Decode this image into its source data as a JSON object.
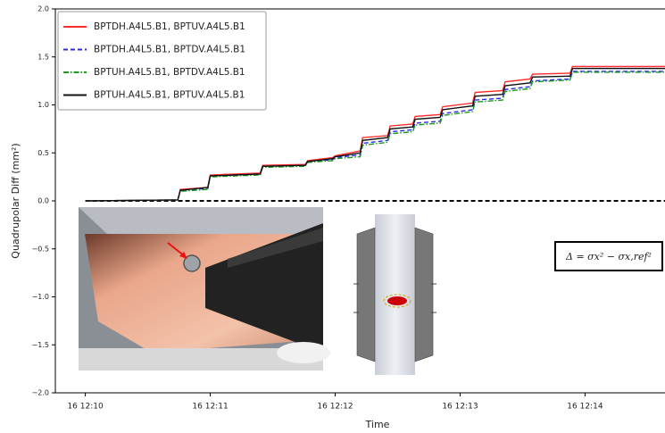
{
  "chart_data": {
    "type": "line",
    "xlabel": "Time",
    "ylabel": "Quadrupolar Diff (mm²)",
    "annotation": "Δ = σx² − σx,ref²",
    "x": [
      10.0,
      10.74,
      10.76,
      10.98,
      11.0,
      11.4,
      11.42,
      11.76,
      11.78,
      11.98,
      12.0,
      12.2,
      12.22,
      12.42,
      12.44,
      12.62,
      12.64,
      12.84,
      12.86,
      13.1,
      13.12,
      13.34,
      13.36,
      13.56,
      13.58,
      13.88,
      13.9,
      14.64
    ],
    "series": [
      {
        "name": "BPTDH.A4L5.B1, BPTUV.A4L5.B1",
        "color": "#ff2a2a",
        "linestyle": "solid",
        "values": [
          0.0,
          0.01,
          0.12,
          0.14,
          0.27,
          0.29,
          0.37,
          0.38,
          0.42,
          0.45,
          0.47,
          0.52,
          0.66,
          0.68,
          0.78,
          0.8,
          0.88,
          0.9,
          0.98,
          1.02,
          1.13,
          1.15,
          1.24,
          1.27,
          1.32,
          1.33,
          1.4,
          1.4
        ]
      },
      {
        "name": "BPTDH.A4L5.B1, BPTDV.A4L5.B1",
        "color": "#2a2aee",
        "linestyle": "dashed",
        "values": [
          0.0,
          0.01,
          0.11,
          0.13,
          0.26,
          0.28,
          0.36,
          0.37,
          0.41,
          0.43,
          0.45,
          0.48,
          0.6,
          0.63,
          0.72,
          0.74,
          0.81,
          0.83,
          0.91,
          0.95,
          1.05,
          1.07,
          1.16,
          1.19,
          1.25,
          1.27,
          1.35,
          1.35
        ]
      },
      {
        "name": "BPTUH.A4L5.B1, BPTDV.A4L5.B1",
        "color": "#1a9a1a",
        "linestyle": "dashdot",
        "values": [
          0.0,
          0.01,
          0.1,
          0.12,
          0.25,
          0.27,
          0.35,
          0.36,
          0.4,
          0.42,
          0.44,
          0.46,
          0.58,
          0.61,
          0.7,
          0.72,
          0.79,
          0.81,
          0.89,
          0.93,
          1.03,
          1.05,
          1.14,
          1.17,
          1.24,
          1.26,
          1.34,
          1.34
        ]
      },
      {
        "name": "BPTUH.A4L5.B1, BPTUV.A4L5.B1",
        "color": "#111111",
        "linestyle": "solid",
        "values": [
          0.0,
          0.01,
          0.11,
          0.14,
          0.26,
          0.28,
          0.36,
          0.37,
          0.41,
          0.44,
          0.46,
          0.5,
          0.63,
          0.66,
          0.75,
          0.77,
          0.85,
          0.87,
          0.95,
          0.99,
          1.09,
          1.11,
          1.2,
          1.23,
          1.29,
          1.3,
          1.38,
          1.38
        ]
      }
    ],
    "reference_line": 0,
    "xlim": [
      9.76,
      14.64
    ],
    "xticks": [
      {
        "value": 10,
        "label": "16 12:10"
      },
      {
        "value": 11,
        "label": "16 12:11"
      },
      {
        "value": 12,
        "label": "16 12:12"
      },
      {
        "value": 13,
        "label": "16 12:13"
      },
      {
        "value": 14,
        "label": "16 12:14"
      }
    ],
    "ylim": [
      -2,
      2
    ],
    "yticks": [
      {
        "value": -2,
        "label": "−2.0"
      },
      {
        "value": -1.5,
        "label": "−1.5"
      },
      {
        "value": -1,
        "label": "−1.0"
      },
      {
        "value": -0.5,
        "label": "−0.5"
      },
      {
        "value": 0,
        "label": "0.0"
      },
      0.5,
      {
        "value": 1,
        "label": "1.0"
      },
      1.5,
      {
        "value": 2,
        "label": "2.0"
      }
    ],
    "legend": "upper left"
  }
}
